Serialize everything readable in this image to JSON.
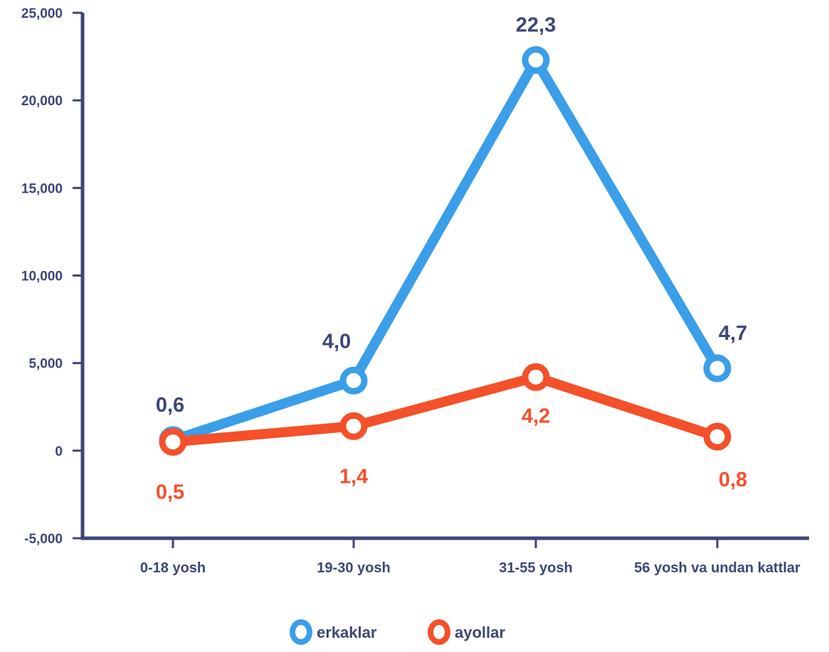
{
  "chart_data": {
    "type": "line",
    "categories": [
      "0-18 yosh",
      "19-30 yosh",
      "31-55 yosh",
      "56 yosh va undan kattlar"
    ],
    "ylim": [
      -5000,
      25000
    ],
    "yticks": [
      "-5,000",
      "0",
      "5,000",
      "10,000",
      "15,000",
      "20,000",
      "25,000"
    ],
    "ytick_values": [
      -5000,
      0,
      5000,
      10000,
      15000,
      20000,
      25000
    ],
    "grid": false,
    "legend_position": "bottom-center",
    "series": [
      {
        "name": "erkaklar",
        "color": "#3a9ee8",
        "label_color": "#3d4578",
        "values": [
          600,
          4000,
          22300,
          4700
        ],
        "labels": [
          "0,6",
          "4,0",
          "22,3",
          "4,7"
        ]
      },
      {
        "name": "ayollar",
        "color": "#f4502a",
        "label_color": "#f4502a",
        "values": [
          500,
          1400,
          4200,
          800
        ],
        "labels": [
          "0,5",
          "1,4",
          "4,2",
          "0,8"
        ]
      }
    ],
    "axis_color": "#3d4578"
  }
}
